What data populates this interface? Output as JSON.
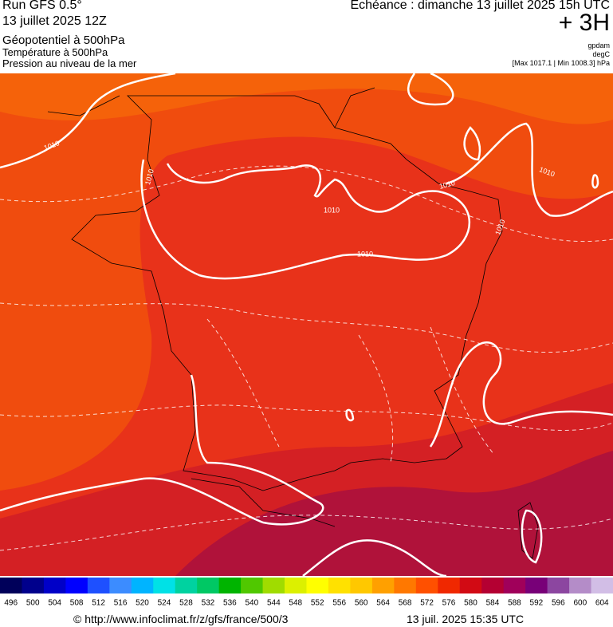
{
  "header": {
    "run": "Run GFS 0.5°",
    "run_date": "13 juillet 2025 12Z",
    "fields": [
      "Géopotentiel à 500hPa",
      "Température à 500hPa",
      "Pression au niveau de la mer"
    ],
    "valid_time": "Echéance : dimanche 13 juillet 2025 15h UTC",
    "lead": "+ 3H",
    "units": [
      "gpdam",
      "degC"
    ],
    "range": "[Max 1017.1 | Min 1008.3] hPa"
  },
  "map": {
    "isobar_labels": [
      "1010",
      "1010",
      "1010",
      "1010",
      "1010",
      "1010",
      "1010"
    ]
  },
  "colorbar": {
    "levels": [
      496,
      500,
      504,
      508,
      512,
      516,
      520,
      524,
      528,
      532,
      536,
      540,
      544,
      548,
      552,
      556,
      560,
      564,
      568,
      572,
      576,
      580,
      584,
      588,
      592,
      596,
      600,
      604
    ],
    "colors": [
      "#00005a",
      "#00008c",
      "#0000c8",
      "#0000ff",
      "#1e50ff",
      "#3c8cff",
      "#00b4ff",
      "#00e1e6",
      "#00d2a0",
      "#00c864",
      "#00b400",
      "#50c800",
      "#a0dc00",
      "#dcf000",
      "#ffff00",
      "#ffe100",
      "#ffc800",
      "#ffa000",
      "#ff7800",
      "#ff5000",
      "#f02800",
      "#d20a14",
      "#b40032",
      "#a0005a",
      "#780078",
      "#8c46a0",
      "#b48cc8",
      "#d2bee6"
    ]
  },
  "footer": {
    "source": "© http://www.infoclimat.fr/z/gfs/france/500/3",
    "generated": "13 juil. 2025 15:35 UTC"
  }
}
